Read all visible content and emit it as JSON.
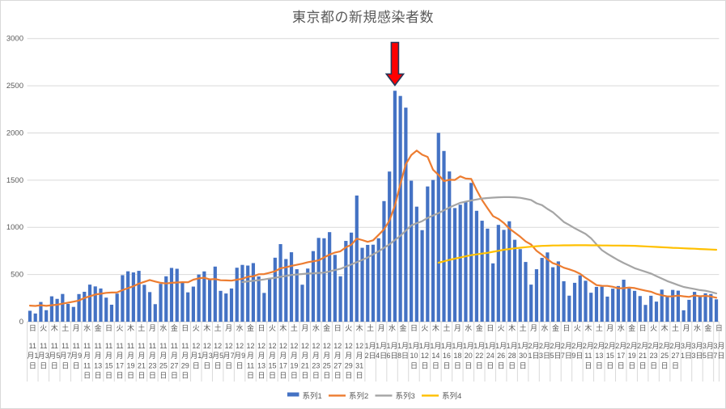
{
  "chart_data": {
    "type": "bar+line-combo",
    "title": "東京都の新規感染者数",
    "xlabel": "",
    "ylabel": "",
    "ylim": [
      0,
      3000
    ],
    "ytick_interval": 500,
    "ytick_labels": [
      "0",
      "500",
      "1000",
      "1500",
      "2000",
      "2500",
      "3000"
    ],
    "grid": "horizontal",
    "legend_position": "bottom",
    "axis_text_color": "#595959",
    "gridline_color": "#d9d9d9",
    "dates": [
      "11/1",
      "11/2",
      "11/3",
      "11/4",
      "11/5",
      "11/6",
      "11/7",
      "11/8",
      "11/9",
      "11/10",
      "11/11",
      "11/12",
      "11/13",
      "11/14",
      "11/15",
      "11/16",
      "11/17",
      "11/18",
      "11/19",
      "11/20",
      "11/21",
      "11/22",
      "11/23",
      "11/24",
      "11/25",
      "11/26",
      "11/27",
      "11/28",
      "11/29",
      "11/30",
      "12/1",
      "12/2",
      "12/3",
      "12/4",
      "12/5",
      "12/6",
      "12/7",
      "12/8",
      "12/9",
      "12/10",
      "12/11",
      "12/12",
      "12/13",
      "12/14",
      "12/15",
      "12/16",
      "12/17",
      "12/18",
      "12/19",
      "12/20",
      "12/21",
      "12/22",
      "12/23",
      "12/24",
      "12/25",
      "12/26",
      "12/27",
      "12/28",
      "12/29",
      "12/30",
      "12/31",
      "1/1",
      "1/2",
      "1/3",
      "1/4",
      "1/5",
      "1/6",
      "1/7",
      "1/8",
      "1/9",
      "1/10",
      "1/11",
      "1/12",
      "1/13",
      "1/14",
      "1/15",
      "1/16",
      "1/17",
      "1/18",
      "1/19",
      "1/20",
      "1/21",
      "1/22",
      "1/23",
      "1/24",
      "1/25",
      "1/26",
      "1/27",
      "1/28",
      "1/29",
      "1/30",
      "1/31",
      "2/1",
      "2/2",
      "2/3",
      "2/4",
      "2/5",
      "2/6",
      "2/7",
      "2/8",
      "2/9",
      "2/10",
      "2/11",
      "2/12",
      "2/13",
      "2/14",
      "2/15",
      "2/16",
      "2/17",
      "2/18",
      "2/19",
      "2/20",
      "2/21",
      "2/22",
      "2/23",
      "2/24",
      "2/25",
      "2/26",
      "2/27",
      "2/28",
      "3/1",
      "3/2",
      "3/3",
      "3/4",
      "3/5",
      "3/6",
      "3/7"
    ],
    "axis_labels": [
      {
        "i": 0,
        "dow": "日",
        "lines": [
          "11",
          "月1",
          "日"
        ]
      },
      {
        "i": 2,
        "dow": "火",
        "lines": [
          "11",
          "月3",
          "日"
        ]
      },
      {
        "i": 4,
        "dow": "木",
        "lines": [
          "11",
          "月5",
          "日"
        ]
      },
      {
        "i": 6,
        "dow": "土",
        "lines": [
          "11",
          "月7",
          "日"
        ]
      },
      {
        "i": 8,
        "dow": "月",
        "lines": [
          "11",
          "月9",
          "日"
        ]
      },
      {
        "i": 10,
        "dow": "水",
        "lines": [
          "11",
          "月",
          "11",
          "日"
        ]
      },
      {
        "i": 12,
        "dow": "金",
        "lines": [
          "11",
          "月",
          "13",
          "日"
        ]
      },
      {
        "i": 14,
        "dow": "日",
        "lines": [
          "11",
          "月",
          "15",
          "日"
        ]
      },
      {
        "i": 16,
        "dow": "火",
        "lines": [
          "11",
          "月",
          "17",
          "日"
        ]
      },
      {
        "i": 18,
        "dow": "木",
        "lines": [
          "11",
          "月",
          "19",
          "日"
        ]
      },
      {
        "i": 20,
        "dow": "土",
        "lines": [
          "11",
          "月",
          "21",
          "日"
        ]
      },
      {
        "i": 22,
        "dow": "月",
        "lines": [
          "11",
          "月",
          "23",
          "日"
        ]
      },
      {
        "i": 24,
        "dow": "水",
        "lines": [
          "11",
          "月",
          "25",
          "日"
        ]
      },
      {
        "i": 26,
        "dow": "金",
        "lines": [
          "11",
          "月",
          "27",
          "日"
        ]
      },
      {
        "i": 28,
        "dow": "日",
        "lines": [
          "11",
          "月",
          "29",
          "日"
        ]
      },
      {
        "i": 30,
        "dow": "火",
        "lines": [
          "12",
          "月1",
          "日"
        ]
      },
      {
        "i": 32,
        "dow": "木",
        "lines": [
          "12",
          "月3",
          "日"
        ]
      },
      {
        "i": 34,
        "dow": "土",
        "lines": [
          "12",
          "月5",
          "日"
        ]
      },
      {
        "i": 36,
        "dow": "月",
        "lines": [
          "12",
          "月7",
          "日"
        ]
      },
      {
        "i": 38,
        "dow": "水",
        "lines": [
          "12",
          "月9",
          "日"
        ]
      },
      {
        "i": 40,
        "dow": "金",
        "lines": [
          "12",
          "月",
          "11",
          "日"
        ]
      },
      {
        "i": 42,
        "dow": "日",
        "lines": [
          "12",
          "月",
          "13",
          "日"
        ]
      },
      {
        "i": 44,
        "dow": "火",
        "lines": [
          "12",
          "月",
          "15",
          "日"
        ]
      },
      {
        "i": 46,
        "dow": "木",
        "lines": [
          "12",
          "月",
          "17",
          "日"
        ]
      },
      {
        "i": 48,
        "dow": "土",
        "lines": [
          "12",
          "月",
          "19",
          "日"
        ]
      },
      {
        "i": 50,
        "dow": "月",
        "lines": [
          "12",
          "月",
          "21",
          "日"
        ]
      },
      {
        "i": 52,
        "dow": "水",
        "lines": [
          "12",
          "月",
          "23",
          "日"
        ]
      },
      {
        "i": 54,
        "dow": "金",
        "lines": [
          "12",
          "月",
          "25",
          "日"
        ]
      },
      {
        "i": 56,
        "dow": "日",
        "lines": [
          "12",
          "月",
          "27",
          "日"
        ]
      },
      {
        "i": 58,
        "dow": "火",
        "lines": [
          "12",
          "月",
          "29",
          "日"
        ]
      },
      {
        "i": 60,
        "dow": "木",
        "lines": [
          "12",
          "月",
          "31",
          "日"
        ]
      },
      {
        "i": 62,
        "dow": "土",
        "lines": [
          "1月",
          "2日"
        ]
      },
      {
        "i": 64,
        "dow": "月",
        "lines": [
          "1月",
          "4日"
        ]
      },
      {
        "i": 66,
        "dow": "水",
        "lines": [
          "1月",
          "6日"
        ]
      },
      {
        "i": 68,
        "dow": "金",
        "lines": [
          "1月",
          "8日"
        ]
      },
      {
        "i": 70,
        "dow": "日",
        "lines": [
          "1月",
          "10",
          "日"
        ]
      },
      {
        "i": 72,
        "dow": "火",
        "lines": [
          "1月",
          "12",
          "日"
        ]
      },
      {
        "i": 74,
        "dow": "木",
        "lines": [
          "1月",
          "14",
          "日"
        ]
      },
      {
        "i": 76,
        "dow": "土",
        "lines": [
          "1月",
          "16",
          "日"
        ]
      },
      {
        "i": 78,
        "dow": "月",
        "lines": [
          "1月",
          "18",
          "日"
        ]
      },
      {
        "i": 80,
        "dow": "水",
        "lines": [
          "1月",
          "20",
          "日"
        ]
      },
      {
        "i": 82,
        "dow": "金",
        "lines": [
          "1月",
          "22",
          "日"
        ]
      },
      {
        "i": 84,
        "dow": "日",
        "lines": [
          "1月",
          "24",
          "日"
        ]
      },
      {
        "i": 86,
        "dow": "火",
        "lines": [
          "1月",
          "26",
          "日"
        ]
      },
      {
        "i": 88,
        "dow": "木",
        "lines": [
          "1月",
          "28",
          "日"
        ]
      },
      {
        "i": 90,
        "dow": "土",
        "lines": [
          "1月",
          "30",
          "日"
        ]
      },
      {
        "i": 92,
        "dow": "月",
        "lines": [
          "2月",
          "1日"
        ]
      },
      {
        "i": 94,
        "dow": "水",
        "lines": [
          "2月",
          "3日"
        ]
      },
      {
        "i": 96,
        "dow": "金",
        "lines": [
          "2月",
          "5日"
        ]
      },
      {
        "i": 98,
        "dow": "日",
        "lines": [
          "2月",
          "7日"
        ]
      },
      {
        "i": 100,
        "dow": "火",
        "lines": [
          "2月",
          "9日"
        ]
      },
      {
        "i": 102,
        "dow": "木",
        "lines": [
          "2月",
          "11",
          "日"
        ]
      },
      {
        "i": 104,
        "dow": "土",
        "lines": [
          "2月",
          "13",
          "日"
        ]
      },
      {
        "i": 106,
        "dow": "月",
        "lines": [
          "2月",
          "15",
          "日"
        ]
      },
      {
        "i": 108,
        "dow": "水",
        "lines": [
          "2月",
          "17",
          "日"
        ]
      },
      {
        "i": 110,
        "dow": "金",
        "lines": [
          "2月",
          "19",
          "日"
        ]
      },
      {
        "i": 112,
        "dow": "日",
        "lines": [
          "2月",
          "21",
          "日"
        ]
      },
      {
        "i": 114,
        "dow": "火",
        "lines": [
          "2月",
          "23",
          "日"
        ]
      },
      {
        "i": 116,
        "dow": "木",
        "lines": [
          "2月",
          "25",
          "日"
        ]
      },
      {
        "i": 118,
        "dow": "土",
        "lines": [
          "2月",
          "27",
          "日"
        ]
      },
      {
        "i": 120,
        "dow": "月",
        "lines": [
          "3月",
          "1日"
        ]
      },
      {
        "i": 122,
        "dow": "水",
        "lines": [
          "3月",
          "3日"
        ]
      },
      {
        "i": 124,
        "dow": "金",
        "lines": [
          "3月",
          "5日"
        ]
      },
      {
        "i": 126,
        "dow": "日",
        "lines": [
          "3月",
          "7日"
        ]
      }
    ],
    "series": [
      {
        "name": "系列1",
        "type": "bar",
        "color": "#4472C4",
        "start_index": 0,
        "values": [
          116,
          87,
          209,
          122,
          269,
          242,
          294,
          189,
          157,
          293,
          317,
          393,
          374,
          352,
          255,
          180,
          298,
          493,
          534,
          522,
          539,
          391,
          314,
          186,
          401,
          481,
          570,
          561,
          418,
          311,
          372,
          500,
          533,
          449,
          584,
          327,
          299,
          352,
          572,
          602,
          595,
          621,
          480,
          305,
          460,
          678,
          822,
          664,
          736,
          556,
          392,
          563,
          748,
          888,
          884,
          949,
          708,
          481,
          856,
          944,
          1337,
          783,
          814,
          816,
          884,
          1278,
          1591,
          2447,
          2392,
          2268,
          1494,
          1219,
          970,
          1433,
          1502,
          2001,
          1809,
          1592,
          1204,
          1240,
          1274,
          1471,
          1175,
          1070,
          986,
          618,
          1026,
          973,
          1064,
          868,
          769,
          633,
          393,
          556,
          676,
          734,
          577,
          639,
          429,
          276,
          412,
          491,
          434,
          307,
          369,
          371,
          266,
          350,
          378,
          445,
          353,
          327,
          272,
          178,
          275,
          213,
          340,
          270,
          337,
          329,
          121,
          232,
          316,
          279,
          301,
          293,
          237
        ]
      },
      {
        "name": "系列2",
        "type": "line",
        "color": "#ED7D31",
        "start_index": 0,
        "values": [
          170,
          167,
          175,
          168,
          175,
          180,
          191,
          202,
          212,
          224,
          252,
          269,
          288,
          296,
          306,
          309,
          310,
          335,
          355,
          376,
          403,
          422,
          442,
          426,
          412,
          405,
          412,
          415,
          419,
          418,
          445,
          459,
          466,
          449,
          452,
          439,
          438,
          435,
          445,
          455,
          476,
          481,
          503,
          504,
          519,
          534,
          566,
          576,
          592,
          603,
          615,
          630,
          640,
          650,
          681,
          711,
          733,
          746,
          788,
          816,
          880,
          865,
          846,
          862,
          919,
          979,
          1072,
          1230,
          1460,
          1668,
          1765,
          1813,
          1769,
          1746,
          1611,
          1555,
          1490,
          1504,
          1502,
          1540,
          1517,
          1513,
          1395,
          1289,
          1203,
          1119,
          1089,
          1046,
          987,
          944,
          901,
          850,
          818,
          751,
          708,
          661,
          620,
          601,
          572,
          555,
          535,
          508,
          465,
          427,
          388,
          380,
          379,
          370,
          354,
          355,
          362,
          356,
          342,
          329,
          318,
          295,
          280,
          268,
          269,
          277,
          269,
          263,
          278,
          269,
          274,
          267,
          254
        ]
      },
      {
        "name": "系列3",
        "type": "line",
        "color": "#A5A5A5",
        "start_index": 39,
        "values": [
          420,
          427,
          433,
          440,
          448,
          457,
          465,
          475,
          485,
          495,
          500,
          505,
          510,
          513,
          517,
          520,
          533,
          547,
          560,
          583,
          607,
          630,
          655,
          680,
          713,
          745,
          783,
          820,
          865,
          910,
          965,
          1020,
          1043,
          1065,
          1100,
          1125,
          1150,
          1180,
          1210,
          1235,
          1260,
          1273,
          1285,
          1295,
          1305,
          1310,
          1315,
          1318,
          1320,
          1320,
          1318,
          1313,
          1302,
          1290,
          1255,
          1235,
          1195,
          1160,
          1110,
          1057,
          1025,
          991,
          960,
          930,
          885,
          820,
          758,
          720,
          685,
          652,
          622,
          595,
          567,
          548,
          529,
          510,
          483,
          457,
          430,
          409,
          388,
          368,
          357,
          346,
          335,
          328,
          315,
          300
        ]
      },
      {
        "name": "系列4",
        "type": "line",
        "color": "#FFC000",
        "start_index": 75,
        "values": [
          625,
          640,
          655,
          668,
          680,
          693,
          705,
          713,
          722,
          730,
          741,
          751,
          762,
          770,
          778,
          784,
          790,
          795,
          800,
          803,
          805,
          808,
          808,
          809,
          809,
          810,
          810,
          810,
          809,
          809,
          808,
          808,
          807,
          807,
          806,
          805,
          804,
          801,
          798,
          795,
          792,
          789,
          786,
          783,
          781,
          778,
          775,
          773,
          770,
          767,
          765,
          762
        ]
      }
    ],
    "annotation": {
      "shape": "down-arrow",
      "date": "1/7",
      "index": 67,
      "points_to_value": 2447,
      "fill": "#FF0000",
      "stroke": "#24395B"
    },
    "legend": {
      "entries": [
        "系列1",
        "系列2",
        "系列3",
        "系列4"
      ]
    }
  }
}
